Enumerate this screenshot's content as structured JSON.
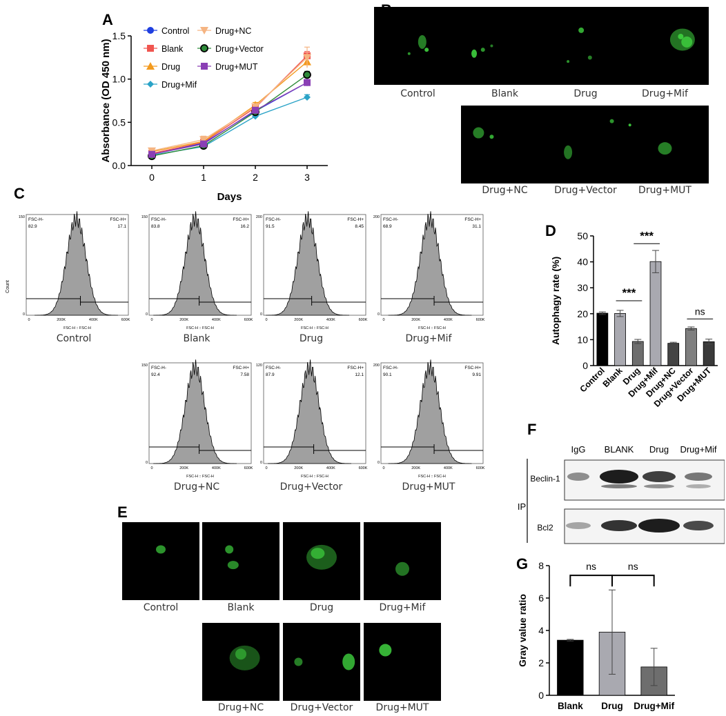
{
  "panels": {
    "A": "A",
    "B": "B",
    "C": "C",
    "D": "D",
    "E": "E",
    "F": "F",
    "G": "G"
  },
  "chart_data": [
    {
      "id": "A",
      "type": "line",
      "xlabel": "Days",
      "ylabel": "Absorbance (OD 450 nm)",
      "x": [
        0,
        1,
        2,
        3
      ],
      "xlim": [
        -0.4,
        3.4
      ],
      "ylim": [
        0.0,
        1.5
      ],
      "yticks": [
        0.0,
        0.5,
        1.0,
        1.5
      ],
      "ytick_labels": [
        "0.0",
        "0.5",
        "1.0",
        "1.5"
      ],
      "xticks": [
        0,
        1,
        2,
        3
      ],
      "xtick_labels": [
        "0",
        "1",
        "2",
        "3"
      ],
      "legend_position": "top-left",
      "series": [
        {
          "name": "Control",
          "color": "#1f3fe0",
          "marker": "circle",
          "values": [
            0.13,
            0.26,
            0.63,
            0.96
          ],
          "err": [
            0.02,
            0.03,
            0.03,
            0.03
          ]
        },
        {
          "name": "Blank",
          "color": "#f0554f",
          "marker": "square",
          "values": [
            0.14,
            0.27,
            0.67,
            1.27
          ],
          "err": [
            0.02,
            0.03,
            0.03,
            0.05
          ]
        },
        {
          "name": "Drug",
          "color": "#f39a1e",
          "marker": "triangle-up",
          "values": [
            0.16,
            0.28,
            0.7,
            1.2
          ],
          "err": [
            0.03,
            0.04,
            0.03,
            0.06
          ]
        },
        {
          "name": "Drug+Mif",
          "color": "#2aa3c7",
          "marker": "diamond",
          "values": [
            0.12,
            0.22,
            0.57,
            0.79
          ],
          "err": [
            0.02,
            0.03,
            0.03,
            0.03
          ]
        },
        {
          "name": "Drug+NC",
          "color": "#f5b482",
          "marker": "triangle-down",
          "values": [
            0.17,
            0.3,
            0.68,
            1.25
          ],
          "err": [
            0.03,
            0.04,
            0.03,
            0.12
          ]
        },
        {
          "name": "Drug+Vector",
          "color": "#2e8b3a",
          "marker": "circle-outline",
          "values": [
            0.11,
            0.23,
            0.62,
            1.05
          ],
          "err": [
            0.02,
            0.03,
            0.03,
            0.04
          ]
        },
        {
          "name": "Drug+MUT",
          "color": "#8a3fb5",
          "marker": "square",
          "values": [
            0.13,
            0.25,
            0.64,
            0.96
          ],
          "err": [
            0.02,
            0.03,
            0.03,
            0.03
          ]
        }
      ]
    },
    {
      "id": "D",
      "type": "bar",
      "ylabel": "Autophagy rate (%)",
      "categories": [
        "Control",
        "Blank",
        "Drug",
        "Drug+Mif",
        "Drug+NC",
        "Drug+Vector",
        "Drug+MUT"
      ],
      "values": [
        20.2,
        20.1,
        9.3,
        40.1,
        8.6,
        14.3,
        9.2
      ],
      "err": [
        0.5,
        1.2,
        0.8,
        4.3,
        0.4,
        0.6,
        1.0
      ],
      "colors": [
        "#000000",
        "#a9a9b0",
        "#6e6e6e",
        "#a9a9b0",
        "#444444",
        "#7f7f7f",
        "#3a3a3a"
      ],
      "ylim": [
        0,
        50
      ],
      "yticks": [
        0,
        10,
        20,
        30,
        40,
        50
      ],
      "annotations": [
        {
          "from": 1,
          "to": 2,
          "text": "***",
          "y": 25
        },
        {
          "from": 2,
          "to": 3,
          "text": "***",
          "y": 47
        },
        {
          "from": 5,
          "to": 6,
          "text": "ns",
          "y": 18
        }
      ]
    },
    {
      "id": "G",
      "type": "bar",
      "ylabel": "Gray value ratio",
      "categories": [
        "Blank",
        "Drug",
        "Drug+Mif"
      ],
      "values": [
        3.4,
        3.9,
        1.75
      ],
      "err": [
        0.05,
        2.6,
        1.15
      ],
      "colors": [
        "#000000",
        "#a9a9b0",
        "#6e6e6e"
      ],
      "ylim": [
        0,
        8
      ],
      "yticks": [
        0,
        2,
        4,
        6,
        8
      ],
      "annotations": [
        {
          "from": 0,
          "to": 1,
          "text": "ns",
          "y": 7.4
        },
        {
          "from": 1,
          "to": 2,
          "text": "ns",
          "y": 7.4
        }
      ]
    }
  ],
  "panelB": {
    "top": [
      "Control",
      "Blank",
      "Drug",
      "Drug+Mif"
    ],
    "bottom": [
      "Drug+NC",
      "Drug+Vector",
      "Drug+MUT"
    ]
  },
  "panelC": {
    "axis_label": "Count",
    "xlabel": "FSC-H :: FSC-H",
    "plots": [
      {
        "name": "Control",
        "left_label": "FSC-H-",
        "left_val": "82.9",
        "right_label": "FSC-H+",
        "right_val": "17.1",
        "ymax": "150"
      },
      {
        "name": "Blank",
        "left_label": "FSC-H-",
        "left_val": "83.8",
        "right_label": "FSC-H+",
        "right_val": "16.2",
        "ymax": "150"
      },
      {
        "name": "Drug",
        "left_label": "FSC-H-",
        "left_val": "91.5",
        "right_label": "FSC-H+",
        "right_val": "8.45",
        "ymax": "200"
      },
      {
        "name": "Drug+Mif",
        "left_label": "FSC-H-",
        "left_val": "68.9",
        "right_label": "FSC-H+",
        "right_val": "31.1",
        "ymax": "200"
      },
      {
        "name": "Drug+NC",
        "left_label": "FSC-H-",
        "left_val": "92.4",
        "right_label": "FSC-H+",
        "right_val": "7.58",
        "ymax": "150"
      },
      {
        "name": "Drug+Vector",
        "left_label": "FSC-H-",
        "left_val": "87.9",
        "right_label": "FSC-H+",
        "right_val": "12.1",
        "ymax": "120"
      },
      {
        "name": "Drug+MUT",
        "left_label": "FSC-H-",
        "left_val": "90.1",
        "right_label": "FSC-H+",
        "right_val": "9.91",
        "ymax": "200"
      }
    ],
    "xtick_labels": [
      "0",
      "200K",
      "400K",
      "600K"
    ]
  },
  "panelE": {
    "top": [
      "Control",
      "Blank",
      "Drug",
      "Drug+Mif"
    ],
    "bottom": [
      "Drug+NC",
      "Drug+Vector",
      "Drug+MUT"
    ]
  },
  "panelF": {
    "lanes": [
      "IgG",
      "BLANK",
      "Drug",
      "Drug+Mif"
    ],
    "rows": [
      "Beclin-1",
      "Bcl2"
    ],
    "group_label": "IP"
  },
  "colors": {
    "green_signal": "#3fd13f",
    "hist_fill": "#a0a0a0"
  }
}
